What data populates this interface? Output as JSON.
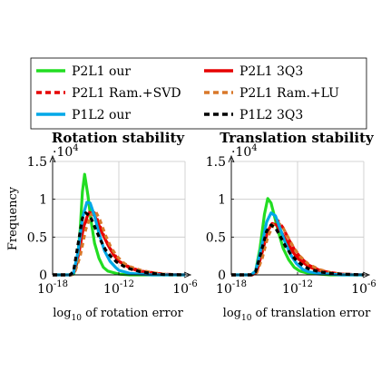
{
  "legend": {
    "entries": [
      {
        "label": "P2L1 our",
        "color": "#22dd22",
        "dash": "solid"
      },
      {
        "label": "P2L1 3Q3",
        "color": "#e60000",
        "dash": "solid"
      },
      {
        "label": "P2L1 Ram.+SVD",
        "color": "#e60000",
        "dash": "dashed"
      },
      {
        "label": "P2L1 Ram.+LU",
        "color": "#d9782a",
        "dash": "dashed"
      },
      {
        "label": "P1L2 our",
        "color": "#00a8e8",
        "dash": "solid"
      },
      {
        "label": "P1L2 3Q3",
        "color": "#000000",
        "dash": "dashed"
      }
    ]
  },
  "chart_data": [
    {
      "type": "line",
      "title": "Rotation stability",
      "xlabel": "log10 of rotation error",
      "ylabel": "Frequency",
      "y_multiplier": "·10^4",
      "xscale": "log",
      "xlim": [
        1e-18,
        1e-06
      ],
      "ylim": [
        0,
        1.5
      ],
      "xticks": [
        "10^-18",
        "10^-12",
        "10^-6"
      ],
      "yticks": [
        "0",
        "0.5",
        "1",
        "1.5"
      ],
      "grid": true,
      "series": [
        {
          "name": "P2L1 our",
          "color": "#22dd22",
          "dash": "solid",
          "x": [
            -18,
            -16.5,
            -16.1,
            -15.8,
            -15.5,
            -15.3,
            -15.1,
            -14.8,
            -14.5,
            -14.2,
            -13.8,
            -13.4,
            -13.0,
            -12.5,
            -12,
            -11,
            -10,
            -9,
            -8,
            -6
          ],
          "y": [
            0,
            0,
            0.01,
            0.15,
            0.6,
            1.1,
            1.33,
            1.05,
            0.7,
            0.42,
            0.22,
            0.1,
            0.05,
            0.03,
            0.01,
            0,
            0,
            0,
            0,
            0
          ]
        },
        {
          "name": "P2L1 3Q3",
          "color": "#e60000",
          "dash": "solid",
          "x": [
            -18,
            -16.3,
            -16,
            -15.6,
            -15.2,
            -14.8,
            -14.4,
            -14.0,
            -13.5,
            -13.0,
            -12.5,
            -12,
            -11,
            -10,
            -9,
            -8,
            -6
          ],
          "y": [
            0,
            0,
            0.05,
            0.3,
            0.63,
            0.8,
            0.82,
            0.73,
            0.55,
            0.4,
            0.27,
            0.18,
            0.09,
            0.04,
            0.02,
            0.005,
            0
          ]
        },
        {
          "name": "P2L1 Ram.+SVD",
          "color": "#e60000",
          "dash": "dashed",
          "x": [
            -18,
            -16.3,
            -16,
            -15.5,
            -15,
            -14.6,
            -14.2,
            -13.8,
            -13.3,
            -12.8,
            -12.3,
            -12,
            -11,
            -10,
            -9,
            -8,
            -6
          ],
          "y": [
            0,
            0,
            0.03,
            0.3,
            0.68,
            0.85,
            0.82,
            0.68,
            0.5,
            0.35,
            0.25,
            0.18,
            0.1,
            0.05,
            0.03,
            0.01,
            0
          ]
        },
        {
          "name": "P2L1 Ram.+LU",
          "color": "#d9782a",
          "dash": "dashed",
          "x": [
            -18,
            -16.3,
            -16,
            -15.5,
            -15,
            -14.5,
            -14.1,
            -13.7,
            -13.2,
            -12.7,
            -12.2,
            -11.5,
            -11,
            -10,
            -9,
            -8,
            -6
          ],
          "y": [
            0,
            0,
            0.03,
            0.25,
            0.6,
            0.8,
            0.84,
            0.72,
            0.52,
            0.36,
            0.25,
            0.15,
            0.11,
            0.06,
            0.03,
            0.01,
            0
          ]
        },
        {
          "name": "P1L2 our",
          "color": "#00a8e8",
          "dash": "solid",
          "x": [
            -18,
            -16.4,
            -16.1,
            -15.7,
            -15.3,
            -14.9,
            -14.6,
            -14.2,
            -13.8,
            -13.3,
            -12.8,
            -12.3,
            -12,
            -11,
            -10,
            -9,
            -8,
            -6
          ],
          "y": [
            0,
            0,
            0.03,
            0.3,
            0.75,
            0.96,
            0.95,
            0.78,
            0.55,
            0.32,
            0.18,
            0.1,
            0.06,
            0.02,
            0.01,
            0,
            0,
            0
          ]
        },
        {
          "name": "P1L2 3Q3",
          "color": "#000000",
          "dash": "dashed",
          "x": [
            -18,
            -16.4,
            -16.1,
            -15.7,
            -15.3,
            -15.0,
            -14.6,
            -14.2,
            -13.7,
            -13.2,
            -12.7,
            -12.2,
            -11.5,
            -11,
            -10,
            -9,
            -8,
            -6
          ],
          "y": [
            0,
            0,
            0.05,
            0.4,
            0.75,
            0.82,
            0.78,
            0.64,
            0.47,
            0.33,
            0.24,
            0.17,
            0.11,
            0.08,
            0.04,
            0.02,
            0.005,
            0
          ]
        }
      ]
    },
    {
      "type": "line",
      "title": "Translation stability",
      "xlabel": "log10 of translation error",
      "ylabel": "",
      "y_multiplier": "·10^4",
      "xscale": "log",
      "xlim": [
        1e-18,
        1e-06
      ],
      "ylim": [
        0,
        1.5
      ],
      "xticks": [
        "10^-18",
        "10^-12",
        "10^-6"
      ],
      "yticks": [
        "0",
        "0.5",
        "1",
        "1.5"
      ],
      "grid": true,
      "series": [
        {
          "name": "P2L1 our",
          "color": "#22dd22",
          "dash": "solid",
          "x": [
            -18,
            -16.2,
            -15.8,
            -15.4,
            -15.0,
            -14.7,
            -14.4,
            -14.1,
            -13.7,
            -13.3,
            -12.8,
            -12.3,
            -11.8,
            -11,
            -10,
            -9,
            -8,
            -6
          ],
          "y": [
            0,
            0,
            0.05,
            0.35,
            0.8,
            1.01,
            0.95,
            0.78,
            0.55,
            0.35,
            0.2,
            0.1,
            0.05,
            0.02,
            0.01,
            0,
            0,
            0
          ]
        },
        {
          "name": "P2L1 3Q3",
          "color": "#e60000",
          "dash": "solid",
          "x": [
            -18,
            -16.1,
            -15.7,
            -15.2,
            -14.7,
            -14.3,
            -13.9,
            -13.4,
            -12.9,
            -12.4,
            -12,
            -11,
            -10,
            -9,
            -8,
            -6
          ],
          "y": [
            0,
            0,
            0.04,
            0.3,
            0.58,
            0.68,
            0.66,
            0.55,
            0.42,
            0.3,
            0.22,
            0.11,
            0.05,
            0.02,
            0.01,
            0
          ]
        },
        {
          "name": "P2L1 Ram.+SVD",
          "color": "#e60000",
          "dash": "dashed",
          "x": [
            -18,
            -16.1,
            -15.7,
            -15.2,
            -14.7,
            -14.2,
            -13.8,
            -13.3,
            -12.8,
            -12.3,
            -11.8,
            -11,
            -10,
            -9,
            -8,
            -6
          ],
          "y": [
            0,
            0,
            0.03,
            0.25,
            0.55,
            0.7,
            0.72,
            0.62,
            0.47,
            0.34,
            0.24,
            0.13,
            0.06,
            0.03,
            0.01,
            0
          ]
        },
        {
          "name": "P2L1 Ram.+LU",
          "color": "#d9782a",
          "dash": "dashed",
          "x": [
            -18,
            -16.1,
            -15.7,
            -15.2,
            -14.7,
            -14.2,
            -13.8,
            -13.3,
            -12.8,
            -12.3,
            -11.8,
            -11,
            -10,
            -9,
            -8,
            -6
          ],
          "y": [
            0,
            0,
            0.03,
            0.22,
            0.5,
            0.66,
            0.7,
            0.62,
            0.48,
            0.35,
            0.25,
            0.14,
            0.07,
            0.03,
            0.01,
            0
          ]
        },
        {
          "name": "P1L2 our",
          "color": "#00a8e8",
          "dash": "solid",
          "x": [
            -18,
            -16.2,
            -15.8,
            -15.3,
            -14.8,
            -14.4,
            -14.0,
            -13.6,
            -13.1,
            -12.6,
            -12.1,
            -11.5,
            -11,
            -10,
            -9,
            -8,
            -6
          ],
          "y": [
            0,
            0,
            0.05,
            0.35,
            0.7,
            0.82,
            0.78,
            0.62,
            0.42,
            0.26,
            0.15,
            0.07,
            0.04,
            0.02,
            0.01,
            0,
            0
          ]
        },
        {
          "name": "P1L2 3Q3",
          "color": "#000000",
          "dash": "dashed",
          "x": [
            -18,
            -16.2,
            -15.8,
            -15.3,
            -14.8,
            -14.4,
            -14.0,
            -13.6,
            -13.1,
            -12.6,
            -12.1,
            -11.5,
            -11,
            -10,
            -9,
            -8,
            -6
          ],
          "y": [
            0,
            0,
            0.04,
            0.3,
            0.58,
            0.66,
            0.62,
            0.52,
            0.38,
            0.27,
            0.19,
            0.12,
            0.08,
            0.04,
            0.02,
            0.01,
            0
          ]
        }
      ]
    }
  ]
}
